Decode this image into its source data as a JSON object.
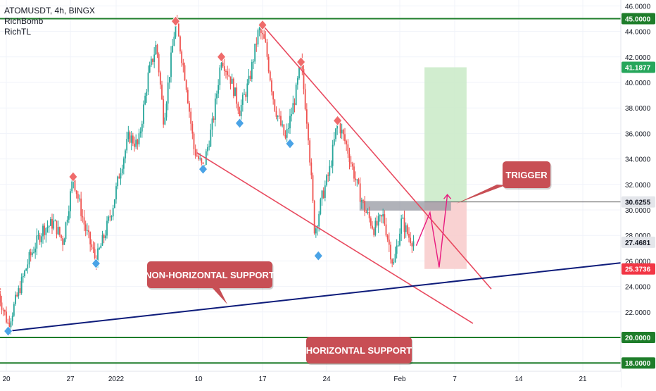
{
  "legend": {
    "symbol": "ATOMUSDT, 4h, BINGX",
    "indicator_1": "RichBomb",
    "indicator_2": "RichTL"
  },
  "chart_data": {
    "type": "candlestick",
    "symbol": "ATOMUSDT",
    "timeframe": "4h",
    "exchange": "BINGX",
    "ylim": [
      17.8,
      46.8
    ],
    "y_ticks": [
      "18.0000",
      "20.0000",
      "22.0000",
      "24.0000",
      "26.0000",
      "28.0000",
      "30.0000",
      "32.0000",
      "34.0000",
      "36.0000",
      "38.0000",
      "40.0000",
      "42.0000",
      "44.0000",
      "46.0000"
    ],
    "x_ticks": [
      {
        "label": "20",
        "day": 0
      },
      {
        "label": "27",
        "day": 7
      },
      {
        "label": "2022",
        "day": 12
      },
      {
        "label": "10",
        "day": 21
      },
      {
        "label": "17",
        "day": 28
      },
      {
        "label": "24",
        "day": 35
      },
      {
        "label": "Feb",
        "day": 43
      },
      {
        "label": "7",
        "day": 49
      },
      {
        "label": "14",
        "day": 56
      },
      {
        "label": "21",
        "day": 63
      }
    ],
    "price_path": [
      [
        -1,
        23.8
      ],
      [
        0.2,
        21.0
      ],
      [
        2.5,
        26.2
      ],
      [
        4,
        28.5
      ],
      [
        5.2,
        29.0
      ],
      [
        6.2,
        27.5
      ],
      [
        7.3,
        32.6
      ],
      [
        8.6,
        28.6
      ],
      [
        9.8,
        26.0
      ],
      [
        10.8,
        28.2
      ],
      [
        11.6,
        30.2
      ],
      [
        12.4,
        33.0
      ],
      [
        13.4,
        35.8
      ],
      [
        14.4,
        35.0
      ],
      [
        15.5,
        40.5
      ],
      [
        16.4,
        43.0
      ],
      [
        17.2,
        37.0
      ],
      [
        18.5,
        44.8
      ],
      [
        19.6,
        40.2
      ],
      [
        20.5,
        34.8
      ],
      [
        21.5,
        33.2
      ],
      [
        22.6,
        37.0
      ],
      [
        23.5,
        42.0
      ],
      [
        24.5,
        40.3
      ],
      [
        25.5,
        37.8
      ],
      [
        26.5,
        40.0
      ],
      [
        27.6,
        44.2
      ],
      [
        28.3,
        43.0
      ],
      [
        29.3,
        38.2
      ],
      [
        30.5,
        35.5
      ],
      [
        31.6,
        39.0
      ],
      [
        32.2,
        41.6
      ],
      [
        33.0,
        36.0
      ],
      [
        33.7,
        28.2
      ],
      [
        34.5,
        31.0
      ],
      [
        35.3,
        33.0
      ],
      [
        36.2,
        37.0
      ],
      [
        37.2,
        35.0
      ],
      [
        38.3,
        32.0
      ],
      [
        39.2,
        30.0
      ],
      [
        40.2,
        28.5
      ],
      [
        41.2,
        29.5
      ],
      [
        42.3,
        25.6
      ],
      [
        43.2,
        29.2
      ],
      [
        44.0,
        27.9
      ],
      [
        44.6,
        27.5
      ]
    ],
    "levels": {
      "current": "27.4681",
      "target": "41.1877",
      "entry": "30.6255",
      "stop": "25.3736",
      "horizontal_support": [
        "45.0000",
        "20.0000",
        "18.0000"
      ]
    },
    "resistance_line": [
      [
        28.0,
        44.5
      ],
      [
        53.0,
        23.8
      ]
    ],
    "falling_support_line": [
      [
        20.8,
        34.5
      ],
      [
        51.0,
        21.1
      ]
    ],
    "rising_support_line": [
      [
        0.2,
        20.5
      ],
      [
        66.5,
        25.8
      ]
    ],
    "rich_bomb_sell": [
      [
        -1,
        23.8
      ],
      [
        7.3,
        32.6
      ],
      [
        18.5,
        44.8
      ],
      [
        23.5,
        42.0
      ],
      [
        28.0,
        44.5
      ],
      [
        32.2,
        41.6
      ],
      [
        36.2,
        37.0
      ]
    ],
    "rich_bomb_buy": [
      [
        0.2,
        20.5
      ],
      [
        9.8,
        25.8
      ],
      [
        21.5,
        33.2
      ],
      [
        25.5,
        36.8
      ],
      [
        31.0,
        35.2
      ],
      [
        34.1,
        26.4
      ]
    ],
    "trade_box": {
      "day_start": 45.7,
      "day_end": 50.3,
      "target": 41.1877,
      "entry": 30.6255,
      "stop": 25.3736
    },
    "trigger_zone": {
      "day_start": 38.6,
      "day_end": 48.6,
      "low": 29.95,
      "high": 30.7
    },
    "projected_path": [
      [
        44.8,
        27.2
      ],
      [
        46.3,
        29.8
      ],
      [
        47.3,
        25.5
      ],
      [
        48.2,
        31.2
      ]
    ],
    "annotations": {
      "trigger": "TRIGGER",
      "non_horizontal_support": "NON-HORIZONTAL SUPPORT",
      "horizontal_support": "HORIZONTAL SUPPORT"
    },
    "colors": {
      "bull": "#26a69a",
      "bear": "#ef5350",
      "support": "#0d1b7a",
      "level": "#1e7d2a",
      "trendline": "#e84a5f",
      "label": "#c84f55",
      "projection": "#e8197e",
      "target_zone": "#c9eac7",
      "stop_zone": "#f8caca"
    }
  }
}
